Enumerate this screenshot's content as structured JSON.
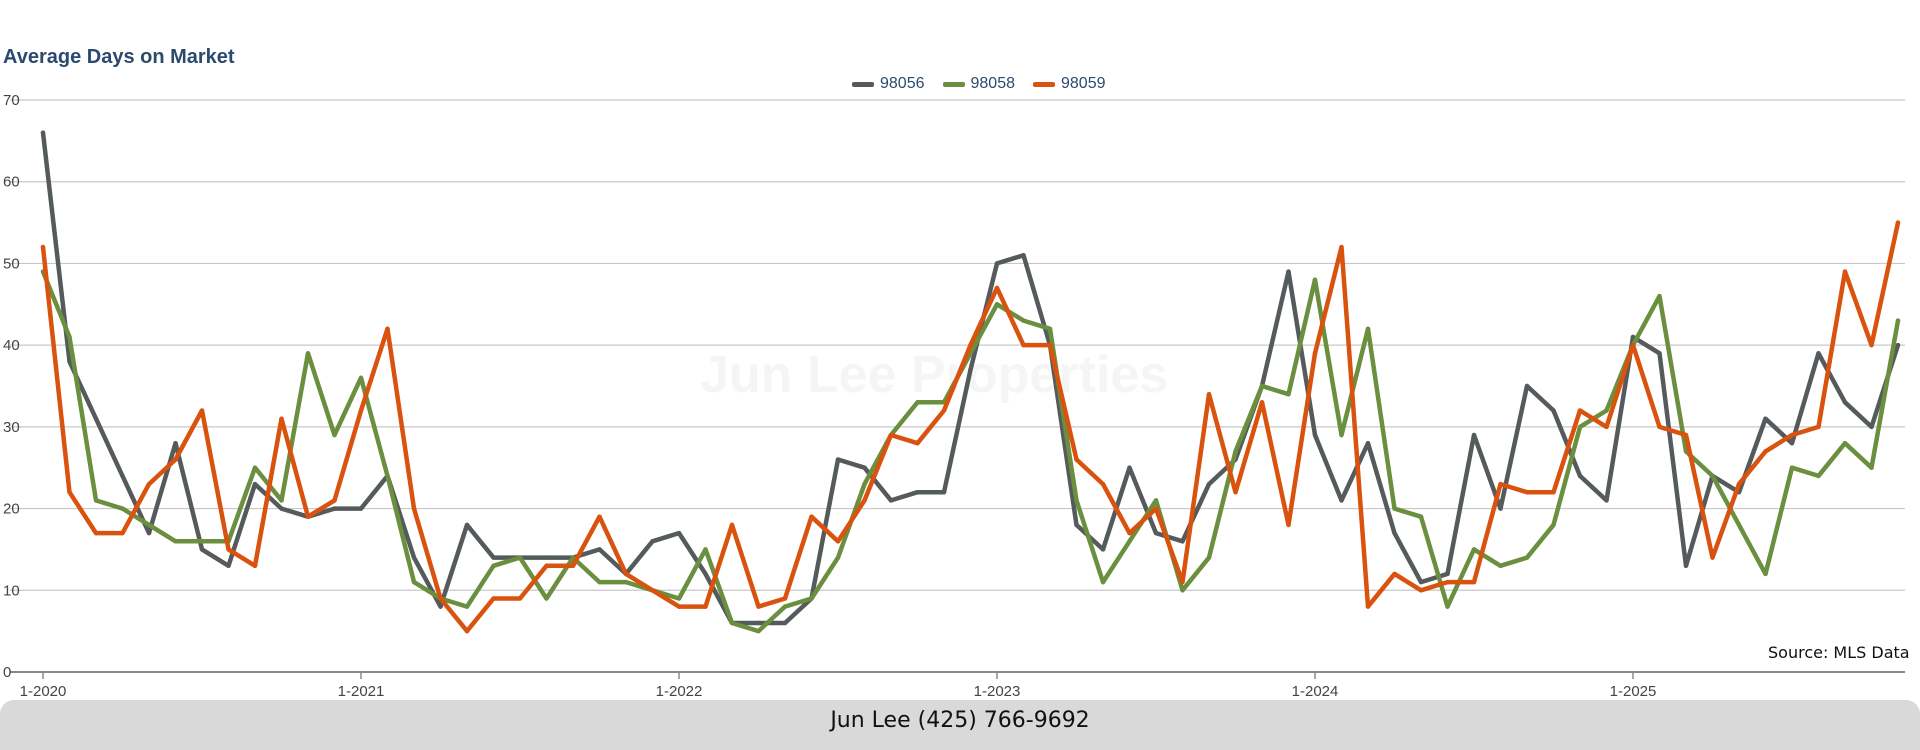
{
  "chart_data": {
    "type": "line",
    "title": "Average Days on Market",
    "ylim": [
      0,
      70
    ],
    "y_ticks": [
      0,
      10,
      20,
      30,
      40,
      50,
      60,
      70
    ],
    "x_tick_labels": [
      "1-2020",
      "1-2021",
      "1-2022",
      "1-2023",
      "1-2024",
      "1-2025"
    ],
    "x_start": "2020-01",
    "x_end": "2025-11",
    "grid": true,
    "legend_position": "top-center",
    "series": [
      {
        "name": "98056",
        "color": "#555a5d",
        "values": [
          66,
          38,
          31,
          24,
          17,
          28,
          15,
          13,
          23,
          20,
          19,
          20,
          20,
          24,
          14,
          8,
          18,
          14,
          14,
          14,
          14,
          15,
          12,
          16,
          17,
          12,
          6,
          6,
          6,
          9,
          26,
          25,
          21,
          22,
          22,
          37,
          50,
          51,
          40,
          18,
          15,
          25,
          17,
          16,
          23,
          26,
          35,
          49,
          29,
          21,
          28,
          17,
          11,
          12,
          29,
          20,
          35,
          32,
          24,
          21,
          41,
          39,
          13,
          24,
          22,
          31,
          28,
          39,
          33,
          30,
          40
        ]
      },
      {
        "name": "98058",
        "color": "#6a8f3f",
        "values": [
          49,
          41,
          21,
          20,
          18,
          16,
          16,
          16,
          25,
          21,
          39,
          29,
          36,
          24,
          11,
          9,
          8,
          13,
          14,
          9,
          14,
          11,
          11,
          10,
          9,
          15,
          6,
          5,
          8,
          9,
          14,
          23,
          29,
          33,
          33,
          39,
          45,
          43,
          42,
          21,
          11,
          16,
          21,
          10,
          14,
          27,
          35,
          34,
          48,
          29,
          42,
          20,
          19,
          8,
          15,
          13,
          14,
          18,
          30,
          32,
          40,
          46,
          27,
          24,
          18,
          12,
          25,
          24,
          28,
          25,
          43
        ]
      },
      {
        "name": "98059",
        "color": "#d9520e",
        "values": [
          52,
          22,
          17,
          17,
          23,
          26,
          32,
          15,
          13,
          31,
          19,
          21,
          32,
          42,
          20,
          9,
          5,
          9,
          9,
          13,
          13,
          19,
          12,
          10,
          8,
          8,
          18,
          8,
          9,
          19,
          16,
          21,
          29,
          28,
          32,
          40,
          47,
          40,
          40,
          26,
          23,
          17,
          20,
          11,
          34,
          22,
          33,
          18,
          39,
          52,
          8,
          12,
          10,
          11,
          11,
          23,
          22,
          22,
          32,
          30,
          40,
          30,
          29,
          14,
          23,
          27,
          29,
          30,
          49,
          40,
          55
        ]
      }
    ],
    "source": "Source: MLS Data"
  },
  "watermark": "Jun Lee Properties",
  "footer": {
    "contact": "Jun Lee (425) 766-9692"
  }
}
